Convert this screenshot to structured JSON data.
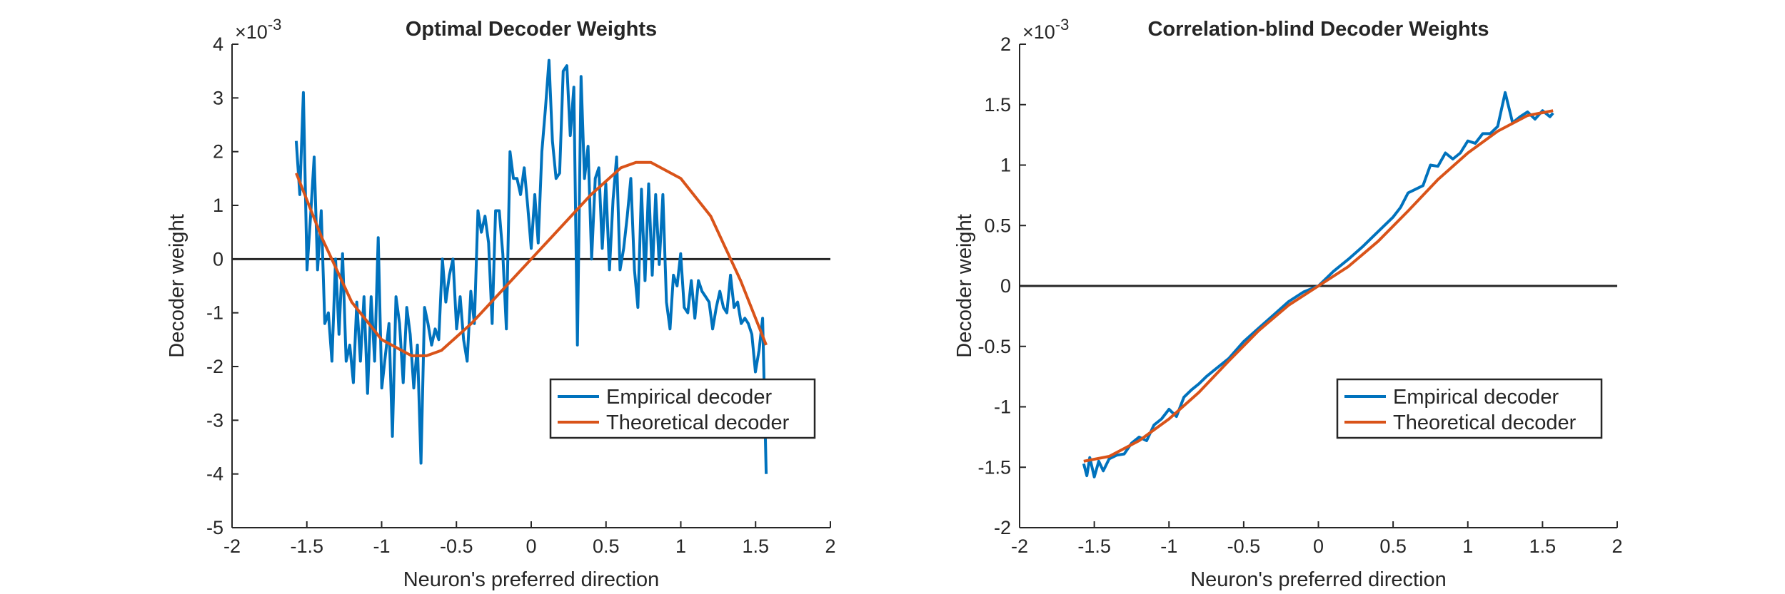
{
  "chart_data": [
    {
      "type": "line",
      "title": "Optimal Decoder Weights",
      "xlabel": "Neuron's preferred direction",
      "ylabel": "Decoder weight",
      "exponent_label": "×10",
      "exponent_power": "-3",
      "xlim": [
        -2,
        2
      ],
      "ylim": [
        -5,
        4
      ],
      "xticks": [
        -2,
        -1.5,
        -1,
        -0.5,
        0,
        0.5,
        1,
        1.5,
        2
      ],
      "xtick_labels": [
        "-2",
        "-1.5",
        "-1",
        "-0.5",
        "0",
        "0.5",
        "1",
        "1.5",
        "2"
      ],
      "yticks": [
        -5,
        -4,
        -3,
        -2,
        -1,
        0,
        1,
        2,
        3,
        4
      ],
      "ytick_labels": [
        "-5",
        "-4",
        "-3",
        "-2",
        "-1",
        "0",
        "1",
        "2",
        "3",
        "4"
      ],
      "zero_line": true,
      "grid": false,
      "legend_position": "lower-right",
      "series": [
        {
          "name": "Empirical decoder",
          "color": "#0072BD",
          "x": [
            -1.571,
            -1.547,
            -1.523,
            -1.499,
            -1.475,
            -1.451,
            -1.428,
            -1.404,
            -1.38,
            -1.356,
            -1.332,
            -1.308,
            -1.285,
            -1.261,
            -1.237,
            -1.213,
            -1.189,
            -1.166,
            -1.142,
            -1.118,
            -1.094,
            -1.07,
            -1.047,
            -1.023,
            -0.999,
            -0.975,
            -0.951,
            -0.928,
            -0.904,
            -0.88,
            -0.856,
            -0.832,
            -0.809,
            -0.785,
            -0.761,
            -0.737,
            -0.713,
            -0.69,
            -0.666,
            -0.642,
            -0.618,
            -0.594,
            -0.571,
            -0.547,
            -0.523,
            -0.499,
            -0.475,
            -0.452,
            -0.428,
            -0.404,
            -0.38,
            -0.356,
            -0.333,
            -0.309,
            -0.285,
            -0.261,
            -0.238,
            -0.214,
            -0.19,
            -0.166,
            -0.142,
            -0.119,
            -0.095,
            -0.071,
            -0.047,
            -0.024,
            0.0,
            0.024,
            0.047,
            0.071,
            0.095,
            0.119,
            0.142,
            0.166,
            0.19,
            0.214,
            0.238,
            0.261,
            0.285,
            0.309,
            0.333,
            0.356,
            0.38,
            0.404,
            0.428,
            0.452,
            0.475,
            0.499,
            0.523,
            0.547,
            0.571,
            0.594,
            0.618,
            0.642,
            0.666,
            0.69,
            0.713,
            0.737,
            0.761,
            0.785,
            0.809,
            0.832,
            0.856,
            0.88,
            0.904,
            0.928,
            0.951,
            0.975,
            0.999,
            1.023,
            1.047,
            1.07,
            1.094,
            1.118,
            1.142,
            1.166,
            1.189,
            1.213,
            1.237,
            1.261,
            1.285,
            1.308,
            1.332,
            1.356,
            1.38,
            1.404,
            1.428,
            1.451,
            1.475,
            1.499,
            1.523,
            1.547,
            1.571
          ],
          "y": [
            0.0022,
            0.0012,
            0.0031,
            -0.0002,
            0.0008,
            0.0019,
            -0.0002,
            0.0009,
            -0.0012,
            -0.001,
            -0.0019,
            0.0,
            -0.0014,
            0.0001,
            -0.0019,
            -0.0016,
            -0.0023,
            -0.0008,
            -0.0019,
            -0.0007,
            -0.0025,
            -0.0007,
            -0.0019,
            0.0004,
            -0.0024,
            -0.0018,
            -0.0012,
            -0.0033,
            -0.0007,
            -0.0012,
            -0.0023,
            -0.0009,
            -0.0014,
            -0.0024,
            -0.0016,
            -0.0038,
            -0.0009,
            -0.0012,
            -0.0016,
            -0.0013,
            -0.0015,
            0.0,
            -0.0008,
            -0.0003,
            0.0,
            -0.0013,
            -0.0007,
            -0.0015,
            -0.0019,
            -0.0006,
            -0.0012,
            0.0009,
            0.0005,
            0.0008,
            0.0003,
            -0.0012,
            0.0009,
            0.0009,
            0.0001,
            -0.0013,
            0.002,
            0.0015,
            0.0015,
            0.0012,
            0.0017,
            0.001,
            0.0002,
            0.0012,
            0.0003,
            0.002,
            0.0028,
            0.0037,
            0.0022,
            0.0015,
            0.0016,
            0.0035,
            0.0036,
            0.0023,
            0.0032,
            -0.0016,
            0.0034,
            0.0015,
            0.0021,
            0.0,
            0.0015,
            0.0017,
            0.0002,
            0.0014,
            -0.0002,
            0.0011,
            0.0019,
            -0.0002,
            0.0002,
            0.0008,
            0.0015,
            -0.0002,
            -0.0009,
            0.0013,
            -0.0004,
            0.0014,
            -0.0003,
            0.0012,
            -0.0001,
            0.0012,
            -0.0008,
            -0.0013,
            -0.0003,
            -0.0005,
            0.0001,
            -0.0009,
            -0.001,
            -0.0004,
            -0.0011,
            -0.0004,
            -0.0006,
            -0.0007,
            -0.0008,
            -0.0013,
            -0.0009,
            -0.0006,
            -0.0009,
            -0.001,
            -0.0003,
            -0.0009,
            -0.0008,
            -0.0012,
            -0.0011,
            -0.0012,
            -0.0014,
            -0.0021,
            -0.0017,
            -0.0011,
            -0.004
          ],
          "note": "dense noisy series; values estimated from visible curve"
        },
        {
          "name": "Theoretical decoder",
          "color": "#D95319",
          "x": [
            -1.571,
            -1.4,
            -1.2,
            -1.0,
            -0.8,
            -0.7,
            -0.6,
            -0.4,
            -0.2,
            0.0,
            0.2,
            0.4,
            0.6,
            0.7,
            0.8,
            1.0,
            1.2,
            1.4,
            1.571
          ],
          "y": [
            0.0016,
            0.0004,
            -0.0008,
            -0.0015,
            -0.0018,
            -0.0018,
            -0.0017,
            -0.0012,
            -0.0006,
            0.0,
            0.0006,
            0.0012,
            0.0017,
            0.0018,
            0.0018,
            0.0015,
            0.0008,
            -0.0004,
            -0.0016
          ]
        }
      ]
    },
    {
      "type": "line",
      "title": "Correlation-blind Decoder Weights",
      "xlabel": "Neuron's preferred direction",
      "ylabel": "Decoder weight",
      "exponent_label": "×10",
      "exponent_power": "-3",
      "xlim": [
        -2,
        2
      ],
      "ylim": [
        -2,
        2
      ],
      "xticks": [
        -2,
        -1.5,
        -1,
        -0.5,
        0,
        0.5,
        1,
        1.5,
        2
      ],
      "xtick_labels": [
        "-2",
        "-1.5",
        "-1",
        "-0.5",
        "0",
        "0.5",
        "1",
        "1.5",
        "2"
      ],
      "yticks": [
        -2,
        -1.5,
        -1,
        -0.5,
        0,
        0.5,
        1,
        1.5,
        2
      ],
      "ytick_labels": [
        "-2",
        "-1.5",
        "-1",
        "-0.5",
        "0",
        "0.5",
        "1",
        "1.5",
        "2"
      ],
      "zero_line": true,
      "grid": false,
      "legend_position": "lower-right",
      "series": [
        {
          "name": "Empirical decoder",
          "color": "#0072BD",
          "x": [
            -1.571,
            -1.55,
            -1.53,
            -1.5,
            -1.47,
            -1.44,
            -1.4,
            -1.35,
            -1.3,
            -1.25,
            -1.2,
            -1.15,
            -1.1,
            -1.05,
            -1.0,
            -0.95,
            -0.9,
            -0.85,
            -0.8,
            -0.75,
            -0.7,
            -0.6,
            -0.5,
            -0.4,
            -0.3,
            -0.2,
            -0.1,
            0.0,
            0.1,
            0.2,
            0.3,
            0.4,
            0.5,
            0.55,
            0.6,
            0.65,
            0.7,
            0.75,
            0.8,
            0.85,
            0.9,
            0.95,
            1.0,
            1.05,
            1.1,
            1.15,
            1.2,
            1.25,
            1.3,
            1.35,
            1.4,
            1.45,
            1.5,
            1.55,
            1.571
          ],
          "y": [
            -0.00147,
            -0.00157,
            -0.00142,
            -0.00158,
            -0.00145,
            -0.00153,
            -0.00143,
            -0.0014,
            -0.00139,
            -0.0013,
            -0.00125,
            -0.00128,
            -0.00115,
            -0.0011,
            -0.00102,
            -0.00108,
            -0.00092,
            -0.00086,
            -0.00081,
            -0.00075,
            -0.0007,
            -0.0006,
            -0.00046,
            -0.00035,
            -0.00024,
            -0.00013,
            -5e-05,
            0.0,
            0.00012,
            0.00022,
            0.00033,
            0.00045,
            0.00057,
            0.00065,
            0.00077,
            0.0008,
            0.00083,
            0.001,
            0.00099,
            0.0011,
            0.00105,
            0.0011,
            0.0012,
            0.00118,
            0.00126,
            0.00126,
            0.00132,
            0.0016,
            0.00135,
            0.0014,
            0.00144,
            0.00138,
            0.00145,
            0.0014,
            0.00143
          ]
        },
        {
          "name": "Theoretical decoder",
          "color": "#D95319",
          "x": [
            -1.571,
            -1.4,
            -1.2,
            -1.0,
            -0.8,
            -0.6,
            -0.4,
            -0.2,
            0.0,
            0.2,
            0.4,
            0.6,
            0.8,
            1.0,
            1.2,
            1.4,
            1.571
          ],
          "y": [
            -0.00145,
            -0.00141,
            -0.00128,
            -0.0011,
            -0.00088,
            -0.00062,
            -0.00037,
            -0.00016,
            0.0,
            0.00016,
            0.00037,
            0.00062,
            0.00088,
            0.0011,
            0.00128,
            0.00141,
            0.00145
          ]
        }
      ]
    }
  ]
}
